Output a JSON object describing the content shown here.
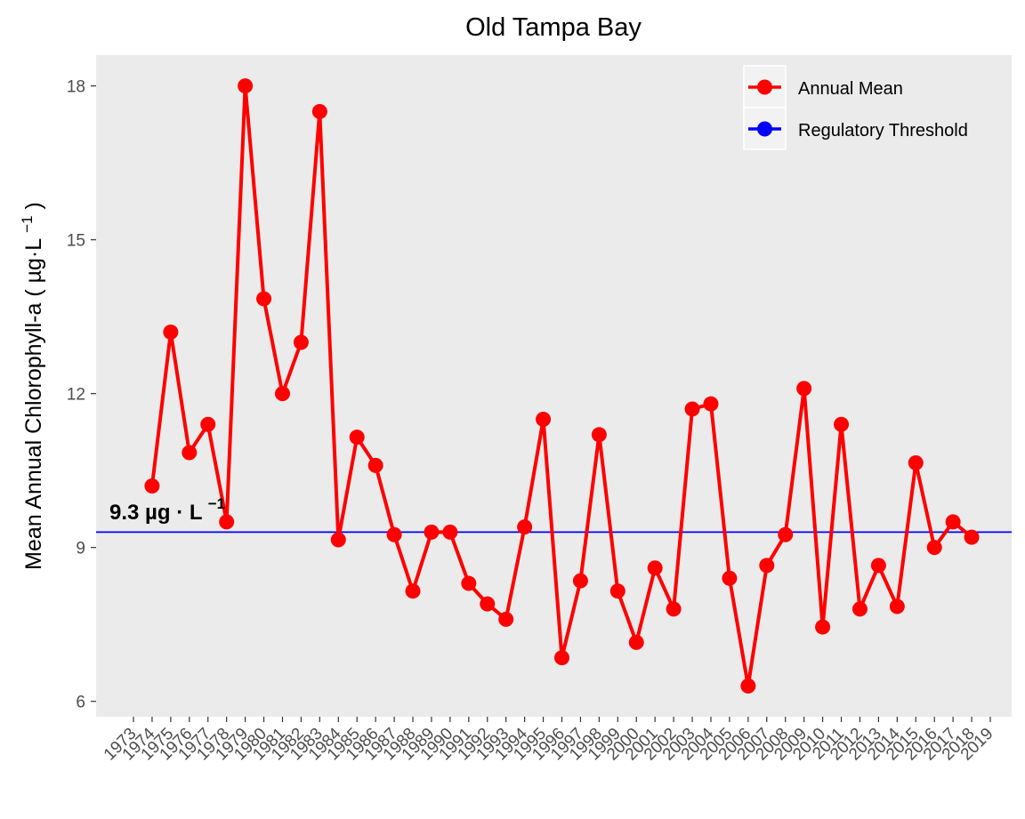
{
  "chart_data": {
    "type": "line",
    "title": "Old Tampa Bay",
    "xlabel": "",
    "ylabel": "Mean Annual Chlorophyll-a ( µg·L",
    "ylabel_superscript": "−1",
    "ylabel_close": ")",
    "ylim": [
      5.7,
      18.6
    ],
    "yticks": [
      6,
      9,
      12,
      15,
      18
    ],
    "categories": [
      "1973",
      "1974",
      "1975",
      "1976",
      "1977",
      "1978",
      "1979",
      "1980",
      "1981",
      "1982",
      "1983",
      "1984",
      "1985",
      "1986",
      "1987",
      "1988",
      "1989",
      "1990",
      "1991",
      "1992",
      "1993",
      "1994",
      "1995",
      "1996",
      "1997",
      "1998",
      "1999",
      "2000",
      "2001",
      "2002",
      "2003",
      "2004",
      "2005",
      "2006",
      "2007",
      "2008",
      "2009",
      "2010",
      "2011",
      "2012",
      "2013",
      "2014",
      "2015",
      "2016",
      "2017",
      "2018",
      "2019"
    ],
    "series": [
      {
        "name": "Annual Mean",
        "color": "#ff0000",
        "values": [
          null,
          10.2,
          13.2,
          10.85,
          11.4,
          9.5,
          18.0,
          13.85,
          12.0,
          13.0,
          17.5,
          9.15,
          11.15,
          10.6,
          9.25,
          8.15,
          9.3,
          9.3,
          8.3,
          7.9,
          7.6,
          9.4,
          11.5,
          6.85,
          8.35,
          11.2,
          8.15,
          7.15,
          8.6,
          7.8,
          11.7,
          11.8,
          8.4,
          6.3,
          8.65,
          9.25,
          12.1,
          7.45,
          11.4,
          7.8,
          8.65,
          7.85,
          10.65,
          9.0,
          9.5,
          9.2,
          null
        ]
      },
      {
        "name": "Regulatory Threshold",
        "color": "#0000ff",
        "constant": 9.3
      }
    ],
    "annotation": {
      "text": "9.3 µg · L",
      "superscript": "−1"
    },
    "grid": false,
    "legend_position": "top-right",
    "panel_background": "#ebebeb"
  }
}
